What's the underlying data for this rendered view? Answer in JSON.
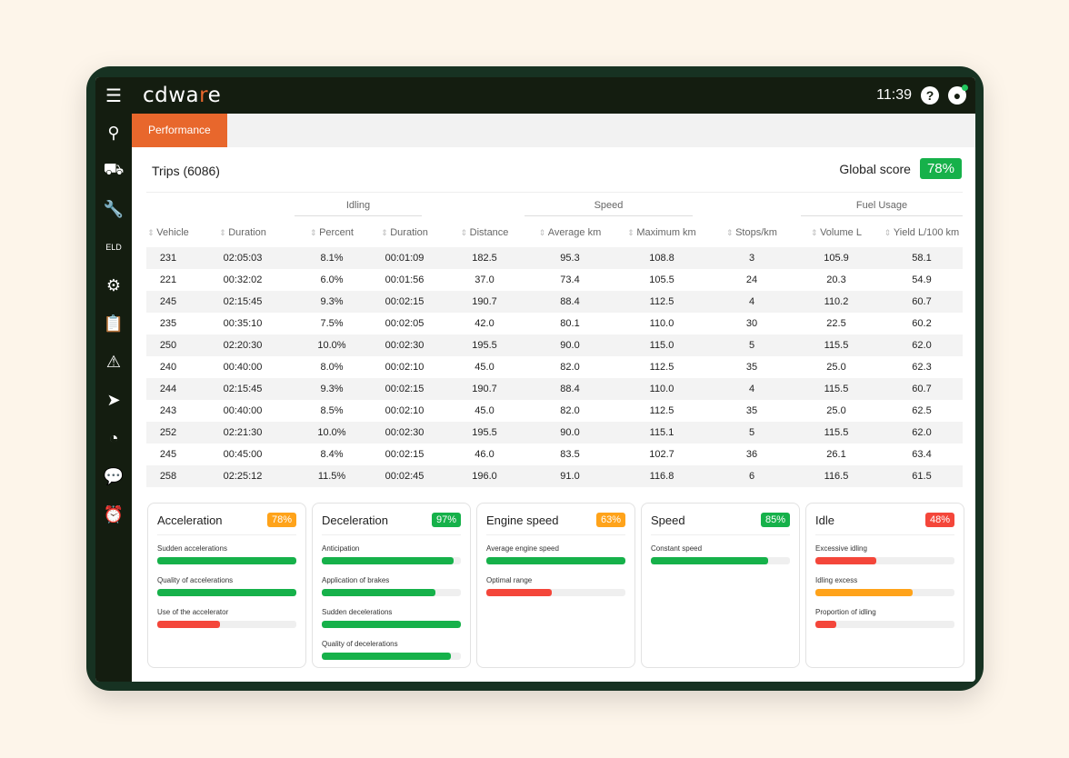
{
  "header": {
    "logo_pre": "cdwa",
    "logo_mid": "r",
    "logo_post": "e",
    "time": "11:39"
  },
  "sidebar": [
    "location",
    "truck",
    "wrench",
    "eld",
    "engine",
    "clipboard",
    "alert",
    "navigation",
    "gauge",
    "chat",
    "alarm"
  ],
  "tab": "Performance",
  "trips": "Trips (6086)",
  "global_score": {
    "label": "Global score",
    "value": "78%"
  },
  "groups": {
    "idling": "Idling",
    "speed": "Speed",
    "fuel": "Fuel Usage"
  },
  "columns": [
    "Vehicle",
    "Duration",
    "Percent",
    "Duration",
    "Distance",
    "Average km",
    "Maximum km",
    "Stops/km",
    "Volume L",
    "Yield L/100 km"
  ],
  "rows": [
    [
      "231",
      "02:05:03",
      "8.1%",
      "00:01:09",
      "182.5",
      "95.3",
      "108.8",
      "3",
      "105.9",
      "58.1"
    ],
    [
      "221",
      "00:32:02",
      "6.0%",
      "00:01:56",
      "37.0",
      "73.4",
      "105.5",
      "24",
      "20.3",
      "54.9"
    ],
    [
      "245",
      "02:15:45",
      "9.3%",
      "00:02:15",
      "190.7",
      "88.4",
      "112.5",
      "4",
      "110.2",
      "60.7"
    ],
    [
      "235",
      "00:35:10",
      "7.5%",
      "00:02:05",
      "42.0",
      "80.1",
      "110.0",
      "30",
      "22.5",
      "60.2"
    ],
    [
      "250",
      "02:20:30",
      "10.0%",
      "00:02:30",
      "195.5",
      "90.0",
      "115.0",
      "5",
      "115.5",
      "62.0"
    ],
    [
      "240",
      "00:40:00",
      "8.0%",
      "00:02:10",
      "45.0",
      "82.0",
      "112.5",
      "35",
      "25.0",
      "62.3"
    ],
    [
      "244",
      "02:15:45",
      "9.3%",
      "00:02:15",
      "190.7",
      "88.4",
      "110.0",
      "4",
      "115.5",
      "60.7"
    ],
    [
      "243",
      "00:40:00",
      "8.5%",
      "00:02:10",
      "45.0",
      "82.0",
      "112.5",
      "35",
      "25.0",
      "62.5"
    ],
    [
      "252",
      "02:21:30",
      "10.0%",
      "00:02:30",
      "195.5",
      "90.0",
      "115.1",
      "5",
      "115.5",
      "62.0"
    ],
    [
      "245",
      "00:45:00",
      "8.4%",
      "00:02:15",
      "46.0",
      "83.5",
      "102.7",
      "36",
      "26.1",
      "63.4"
    ],
    [
      "258",
      "02:25:12",
      "11.5%",
      "00:02:45",
      "196.0",
      "91.0",
      "116.8",
      "6",
      "116.5",
      "61.5"
    ]
  ],
  "colors": {
    "green": "#16b14a",
    "orange": "#ffa31a",
    "red": "#f4463a",
    "accent": "#e8672c"
  },
  "cards": [
    {
      "title": "Acceleration",
      "score": "78%",
      "color": "orange",
      "metrics": [
        {
          "label": "Sudden accelerations",
          "value": 100,
          "color": "green"
        },
        {
          "label": "Quality of accelerations",
          "value": 100,
          "color": "green"
        },
        {
          "label": "Use of the accelerator",
          "value": 45,
          "color": "red"
        }
      ]
    },
    {
      "title": "Deceleration",
      "score": "97%",
      "color": "green",
      "metrics": [
        {
          "label": "Anticipation",
          "value": 95,
          "color": "green"
        },
        {
          "label": "Application of brakes",
          "value": 82,
          "color": "green"
        },
        {
          "label": "Sudden decelerations",
          "value": 100,
          "color": "green"
        },
        {
          "label": "Quality of decelerations",
          "value": 93,
          "color": "green"
        }
      ]
    },
    {
      "title": "Engine speed",
      "score": "63%",
      "color": "orange",
      "metrics": [
        {
          "label": "Average engine speed",
          "value": 100,
          "color": "green"
        },
        {
          "label": "Optimal range",
          "value": 47,
          "color": "red"
        }
      ]
    },
    {
      "title": "Speed",
      "score": "85%",
      "color": "green",
      "metrics": [
        {
          "label": "Constant speed",
          "value": 84,
          "color": "green"
        }
      ]
    },
    {
      "title": "Idle",
      "score": "48%",
      "color": "red",
      "metrics": [
        {
          "label": "Excessive idling",
          "value": 44,
          "color": "red"
        },
        {
          "label": "Idling excess",
          "value": 70,
          "color": "orange"
        },
        {
          "label": "Proportion of idling",
          "value": 15,
          "color": "red"
        }
      ]
    }
  ]
}
